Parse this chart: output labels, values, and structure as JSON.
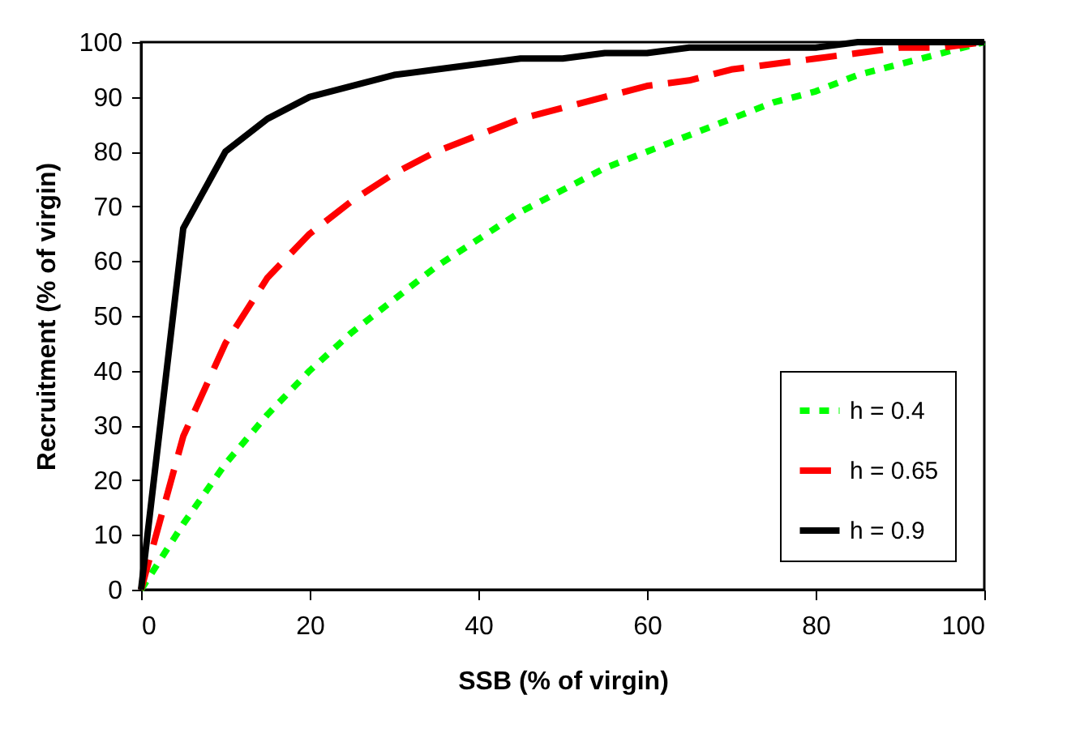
{
  "chart_data": {
    "type": "line",
    "xlabel": "SSB (% of virgin)",
    "ylabel": "Recruitment (% of virgin)",
    "x": [
      0,
      5,
      10,
      15,
      20,
      25,
      30,
      35,
      40,
      45,
      50,
      55,
      60,
      65,
      70,
      75,
      80,
      85,
      90,
      95,
      100
    ],
    "series": [
      {
        "name": "h = 0.4",
        "color": "#00ff00",
        "line_style": "dashed",
        "values": [
          0,
          12,
          23,
          32,
          40,
          47,
          53,
          59,
          64,
          69,
          73,
          77,
          80,
          83,
          86,
          89,
          91,
          94,
          96,
          98,
          100
        ]
      },
      {
        "name": "h = 0.65",
        "color": "#ff0000",
        "line_style": "dashed",
        "values": [
          0,
          28,
          45,
          57,
          65,
          71,
          76,
          80,
          83,
          86,
          88,
          90,
          92,
          93,
          95,
          96,
          97,
          98,
          99,
          99,
          100
        ]
      },
      {
        "name": "h = 0.9",
        "color": "#000000",
        "line_style": "solid",
        "values": [
          0,
          66,
          80,
          86,
          90,
          92,
          94,
          95,
          96,
          97,
          97,
          98,
          98,
          99,
          99,
          99,
          99,
          100,
          100,
          100,
          100
        ]
      }
    ],
    "xlim": [
      0,
      100
    ],
    "xticks": [
      0,
      20,
      40,
      60,
      80,
      100
    ],
    "ylim": [
      0,
      100
    ],
    "yticks": [
      0,
      10,
      20,
      30,
      40,
      50,
      60,
      70,
      80,
      90,
      100
    ],
    "grid": false,
    "legend": "bottom right",
    "marker": "none"
  }
}
